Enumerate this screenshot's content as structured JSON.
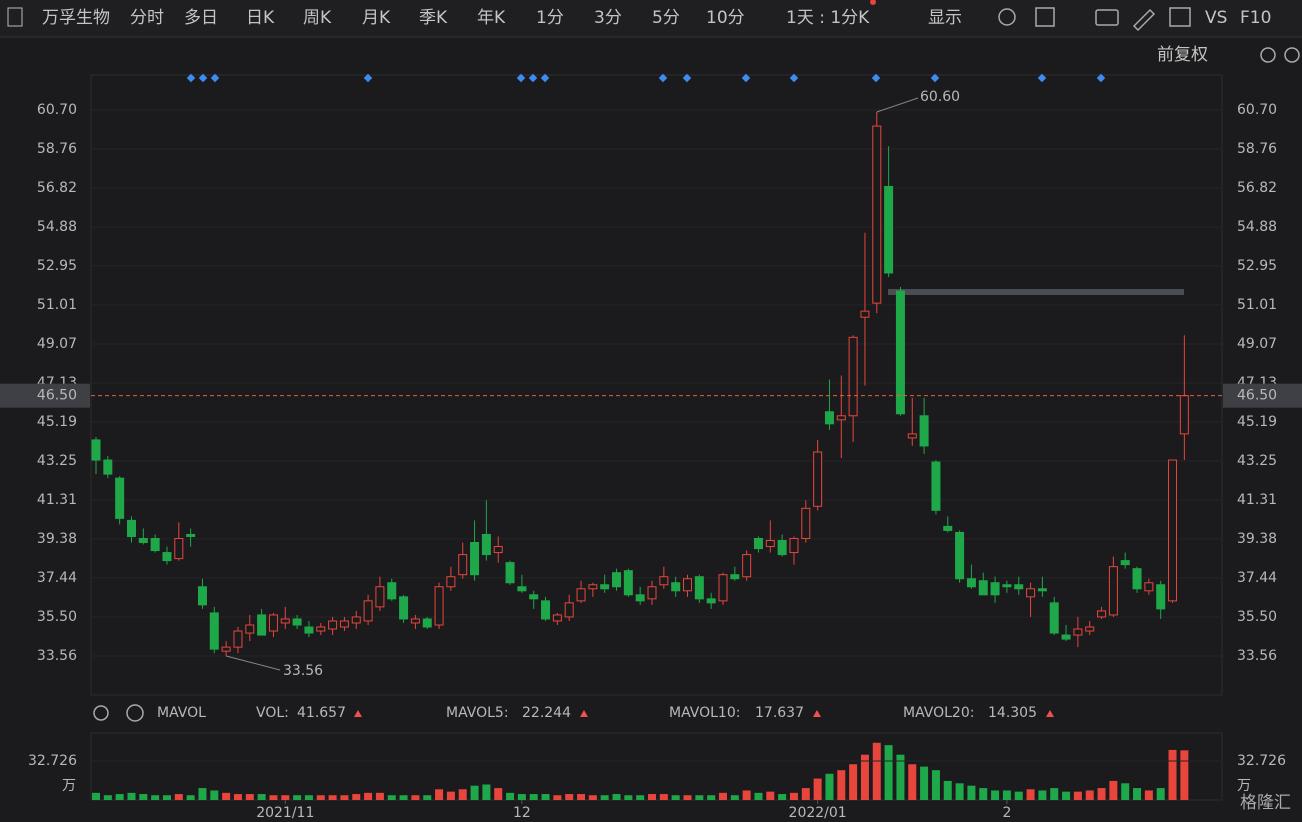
{
  "toolbar": {
    "stock": "万孚生物",
    "tabs": [
      "分时",
      "多日",
      "日K",
      "周K",
      "月K",
      "季K",
      "年K",
      "1分",
      "3分",
      "5分",
      "10分"
    ],
    "active_tab": "日K",
    "period": "1天 : 1分K",
    "display": "显示",
    "vs": "VS",
    "f10": "F10"
  },
  "adjust": "前复权",
  "watermark": "格隆汇",
  "chart_data": {
    "type": "candlestick",
    "categories": [
      null,
      null,
      null,
      null,
      null,
      null,
      null,
      null,
      null,
      null,
      null,
      null,
      null,
      null,
      null,
      null,
      "2021/11",
      null,
      null,
      null,
      null,
      null,
      null,
      null,
      null,
      null,
      null,
      null,
      null,
      null,
      null,
      null,
      null,
      null,
      null,
      null,
      "12",
      null,
      null,
      null,
      null,
      null,
      null,
      null,
      null,
      null,
      null,
      null,
      null,
      null,
      null,
      null,
      null,
      null,
      null,
      null,
      null,
      null,
      null,
      null,
      null,
      "2022/01",
      null,
      null,
      null,
      null,
      null,
      null,
      null,
      null,
      null,
      null,
      null,
      null,
      null,
      null,
      null,
      "2",
      null,
      null,
      null,
      null,
      null,
      null,
      null,
      null,
      null,
      null,
      null,
      null,
      null,
      null,
      null
    ],
    "open": [
      44.3,
      43.3,
      42.4,
      40.3,
      39.4,
      39.4,
      38.7,
      38.4,
      39.6,
      37.0,
      35.7,
      33.8,
      34.0,
      34.7,
      35.6,
      34.8,
      35.2,
      35.4,
      35.0,
      34.8,
      34.9,
      35.0,
      35.2,
      35.3,
      36.0,
      37.2,
      36.5,
      35.2,
      35.4,
      35.1,
      37.0,
      37.6,
      39.2,
      39.6,
      38.7,
      38.2,
      37.0,
      36.6,
      36.3,
      35.3,
      35.5,
      36.3,
      36.9,
      37.1,
      37.7,
      37.8,
      36.6,
      36.4,
      37.1,
      37.2,
      36.8,
      37.5,
      36.4,
      36.3,
      37.6,
      37.5,
      39.4,
      39.0,
      39.3,
      38.7,
      39.4,
      41.0,
      45.7,
      45.3,
      45.5,
      50.4,
      51.1,
      56.9,
      51.7,
      44.4,
      45.5,
      43.2,
      40.0,
      39.7,
      37.4,
      37.3,
      37.2,
      37.1,
      37.1,
      36.5,
      36.9,
      36.2,
      34.6,
      34.6,
      34.8,
      35.5,
      35.6,
      38.3,
      37.9,
      36.8,
      37.1,
      36.3,
      44.6
    ],
    "high": [
      44.45,
      43.5,
      42.5,
      40.5,
      39.9,
      39.6,
      39.0,
      40.2,
      39.9,
      37.4,
      36.0,
      34.3,
      35.0,
      35.6,
      35.9,
      35.7,
      36.0,
      35.6,
      35.3,
      35.2,
      35.5,
      35.5,
      35.8,
      36.6,
      37.5,
      37.4,
      36.6,
      35.6,
      35.5,
      37.2,
      38.0,
      39.2,
      40.3,
      41.3,
      39.5,
      38.3,
      37.6,
      36.8,
      36.5,
      35.7,
      36.6,
      37.3,
      37.2,
      37.6,
      37.9,
      37.9,
      37.0,
      37.3,
      38.0,
      37.5,
      37.6,
      37.6,
      36.7,
      37.7,
      38.0,
      38.8,
      39.5,
      40.3,
      39.6,
      39.5,
      41.3,
      44.3,
      47.3,
      47.5,
      49.5,
      54.6,
      60.6,
      58.9,
      51.9,
      46.4,
      46.4,
      43.3,
      40.5,
      39.8,
      38.1,
      37.7,
      37.5,
      37.3,
      37.5,
      37.2,
      37.5,
      36.5,
      35.1,
      35.5,
      35.3,
      36.0,
      38.5,
      38.7,
      38.0,
      37.4,
      37.3,
      43.3,
      49.5
    ],
    "low": [
      42.6,
      42.4,
      40.1,
      39.2,
      39.1,
      38.7,
      38.1,
      38.3,
      39.0,
      35.9,
      33.7,
      33.56,
      33.7,
      34.3,
      34.6,
      34.5,
      34.9,
      34.9,
      34.5,
      34.6,
      34.6,
      34.8,
      34.9,
      35.1,
      35.8,
      36.3,
      35.2,
      34.9,
      34.9,
      34.9,
      36.8,
      37.4,
      37.3,
      38.3,
      38.2,
      37.1,
      36.7,
      35.9,
      35.3,
      35.1,
      35.3,
      36.2,
      36.5,
      36.7,
      36.8,
      36.5,
      36.1,
      36.1,
      36.9,
      36.5,
      36.5,
      36.2,
      35.9,
      36.1,
      37.3,
      37.3,
      38.7,
      38.7,
      38.5,
      38.1,
      39.2,
      40.8,
      44.8,
      43.4,
      44.2,
      47.0,
      50.6,
      52.4,
      45.5,
      44.0,
      43.6,
      40.6,
      39.7,
      37.2,
      36.9,
      36.6,
      36.2,
      36.7,
      36.6,
      35.5,
      36.5,
      34.6,
      34.3,
      34.0,
      34.6,
      35.4,
      35.5,
      37.9,
      36.7,
      36.6,
      35.4,
      36.2,
      43.3
    ],
    "close": [
      43.3,
      42.6,
      40.4,
      39.5,
      39.2,
      38.8,
      38.3,
      39.4,
      39.5,
      36.1,
      33.9,
      34.0,
      34.8,
      35.1,
      34.6,
      35.6,
      35.4,
      35.1,
      34.7,
      35.0,
      35.3,
      35.3,
      35.5,
      36.3,
      37.0,
      36.4,
      35.4,
      35.4,
      35.0,
      37.0,
      37.5,
      38.6,
      37.6,
      38.6,
      39.0,
      37.2,
      36.8,
      36.4,
      35.4,
      35.6,
      36.2,
      36.9,
      37.1,
      36.9,
      37.0,
      36.6,
      36.3,
      37.0,
      37.5,
      36.8,
      37.4,
      36.4,
      36.2,
      37.6,
      37.4,
      38.6,
      38.9,
      39.3,
      38.6,
      39.4,
      40.9,
      43.7,
      45.1,
      45.5,
      49.4,
      50.7,
      59.9,
      52.6,
      45.6,
      44.6,
      44.0,
      40.8,
      39.8,
      37.4,
      37.0,
      36.6,
      36.6,
      37.0,
      36.9,
      36.9,
      36.8,
      34.7,
      34.4,
      34.9,
      35.0,
      35.8,
      38.0,
      38.1,
      36.9,
      37.2,
      35.9,
      43.3,
      46.5
    ],
    "volume": [
      6,
      4,
      5,
      6,
      5,
      4,
      4,
      5,
      4,
      10,
      8,
      6,
      5,
      5,
      5,
      4,
      4,
      4,
      4,
      4,
      4,
      4,
      5,
      6,
      6,
      4,
      4,
      4,
      4,
      9,
      7,
      9,
      12,
      13,
      10,
      6,
      5,
      5,
      5,
      4,
      5,
      5,
      4,
      4,
      5,
      4,
      4,
      5,
      5,
      4,
      4,
      4,
      4,
      6,
      4,
      8,
      6,
      7,
      5,
      6,
      10,
      18,
      22,
      25,
      30,
      38,
      48,
      46,
      38,
      30,
      28,
      25,
      16,
      14,
      12,
      10,
      8,
      8,
      7,
      9,
      8,
      10,
      7,
      7,
      8,
      10,
      16,
      14,
      10,
      8,
      10,
      42,
      41.657
    ],
    "up_color": "#e8453c",
    "down_color": "#1fa84a",
    "ylim": [
      31.62,
      62.44
    ],
    "yticks": [
      33.56,
      {
        "value": 35.5,
        "label": "35.50"
      },
      37.44,
      39.38,
      41.31,
      43.25,
      45.19,
      47.13,
      49.07,
      51.01,
      52.95,
      54.88,
      56.82,
      58.76,
      {
        "value": 60.7,
        "label": "60.70"
      }
    ],
    "current_price": {
      "value": 46.5,
      "label": "46.50"
    },
    "max_label": {
      "value": 60.6,
      "label": "60.60"
    },
    "min_label": 33.56,
    "volume_ylim": [
      0,
      56.2
    ],
    "volume_yticks": [
      32.726
    ],
    "volume_unit": "万",
    "indicator": "MAVOL",
    "vol_label": "VOL:",
    "mavol": [
      {
        "name": "MAVOL5:",
        "value": 22.244,
        "color": "#f08a2c"
      },
      {
        "name": "MAVOL10:",
        "value": 17.637,
        "color": "#2ea8e0"
      },
      {
        "name": "MAVOL20:",
        "value": 14.305,
        "color": "#e060e0"
      }
    ]
  }
}
